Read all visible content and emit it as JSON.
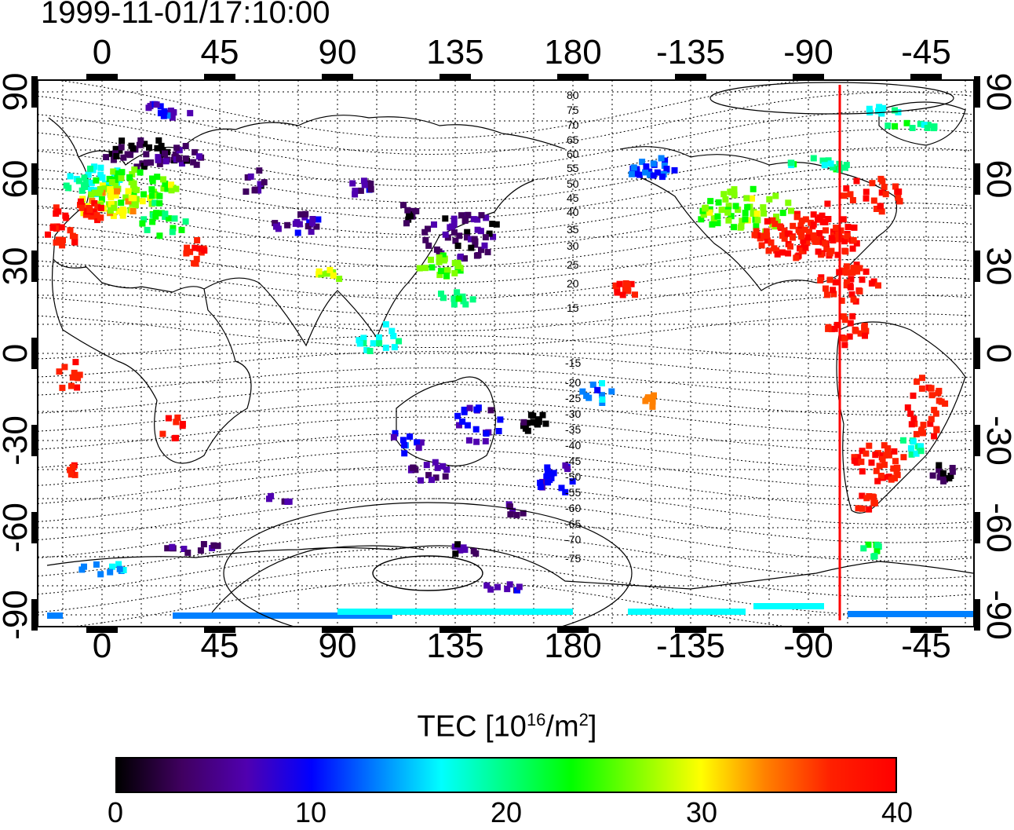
{
  "timestamp": "1999-11-01/17:10:00",
  "map": {
    "lon_ticks": [
      "0",
      "45",
      "90",
      "135",
      "180",
      "-135",
      "-90",
      "-45"
    ],
    "lat_ticks": [
      "90",
      "60",
      "30",
      "0",
      "-30",
      "-60",
      "-90"
    ],
    "contour_labels_north": [
      "80",
      "75",
      "70",
      "65",
      "60",
      "55",
      "50",
      "45",
      "40",
      "35",
      "30",
      "25",
      "20",
      "15"
    ],
    "contour_labels_south": [
      "-15",
      "-20",
      "-25",
      "-30",
      "-35",
      "-40",
      "-45",
      "-50",
      "-55",
      "-60",
      "-65",
      "-70",
      "-75"
    ],
    "terminator_color": "#ff0000"
  },
  "colorbar": {
    "title": "TEC  [10",
    "title_sup": "16",
    "title_mid": "/m",
    "title_sup2": "2",
    "title_end": "]",
    "min": 0,
    "max": 40,
    "tick_labels": [
      "0",
      "10",
      "20",
      "30",
      "40"
    ],
    "colors": [
      "#000000",
      "#400060",
      "#5000b0",
      "#0000ff",
      "#0080ff",
      "#00ffff",
      "#00ff80",
      "#00ff00",
      "#80ff00",
      "#ffff00",
      "#ff8000",
      "#ff2000",
      "#ff0000"
    ]
  }
}
